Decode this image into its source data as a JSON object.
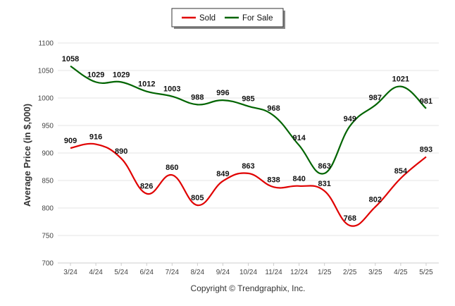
{
  "chart_data": {
    "type": "line",
    "categories": [
      "3/24",
      "4/24",
      "5/24",
      "6/24",
      "7/24",
      "8/24",
      "9/24",
      "10/24",
      "11/24",
      "12/24",
      "1/25",
      "2/25",
      "3/25",
      "4/25",
      "5/25"
    ],
    "series": [
      {
        "name": "Sold",
        "color": "#e00000",
        "values": [
          909,
          916,
          890,
          826,
          860,
          805,
          849,
          863,
          838,
          840,
          831,
          768,
          802,
          854,
          893
        ]
      },
      {
        "name": "For Sale",
        "color": "#006400",
        "values": [
          1058,
          1029,
          1029,
          1012,
          1003,
          988,
          996,
          985,
          968,
          914,
          863,
          949,
          987,
          1021,
          981
        ]
      }
    ],
    "ylabel": "Average Price (in $,000)",
    "xlabel": "",
    "ylim": [
      700,
      1100
    ],
    "yticks": [
      700,
      750,
      800,
      850,
      900,
      950,
      1000,
      1050,
      1100
    ],
    "grid": true,
    "legend_position": "top-center",
    "footer": "Copyright © Trendgraphix, Inc."
  }
}
